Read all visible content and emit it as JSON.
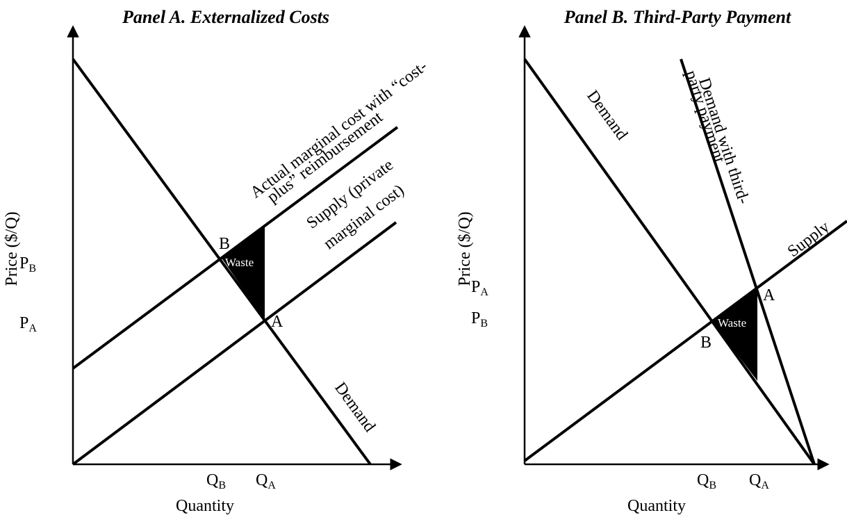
{
  "panels": [
    {
      "title": "Panel A. Externalized Costs",
      "y_axis_label": "Price ($/Q)",
      "x_axis_label": "Quantity",
      "y_ticks": [
        {
          "main": "P",
          "sub": "B"
        },
        {
          "main": "P",
          "sub": "A"
        }
      ],
      "x_ticks": [
        {
          "main": "Q",
          "sub": "B"
        },
        {
          "main": "Q",
          "sub": "A"
        }
      ],
      "points": [
        "B",
        "A"
      ],
      "region": "Waste",
      "curves": [
        {
          "lines": [
            "Actual marginal cost with “cost-",
            "plus” reimbursement"
          ]
        },
        {
          "lines": [
            "Supply (private",
            "marginal cost)"
          ]
        },
        {
          "lines": [
            "Demand"
          ]
        }
      ]
    },
    {
      "title": "Panel B. Third-Party Payment",
      "y_axis_label": "Price ($/Q)",
      "x_axis_label": "Quantity",
      "y_ticks": [
        {
          "main": "P",
          "sub": "A"
        },
        {
          "main": "P",
          "sub": "B"
        }
      ],
      "x_ticks": [
        {
          "main": "Q",
          "sub": "B"
        },
        {
          "main": "Q",
          "sub": "A"
        }
      ],
      "points": [
        "A",
        "B"
      ],
      "region": "Waste",
      "curves": [
        {
          "lines": [
            "Demand"
          ]
        },
        {
          "lines": [
            "Demand with third-",
            "party payment"
          ]
        },
        {
          "lines": [
            "Supply"
          ]
        }
      ]
    }
  ]
}
